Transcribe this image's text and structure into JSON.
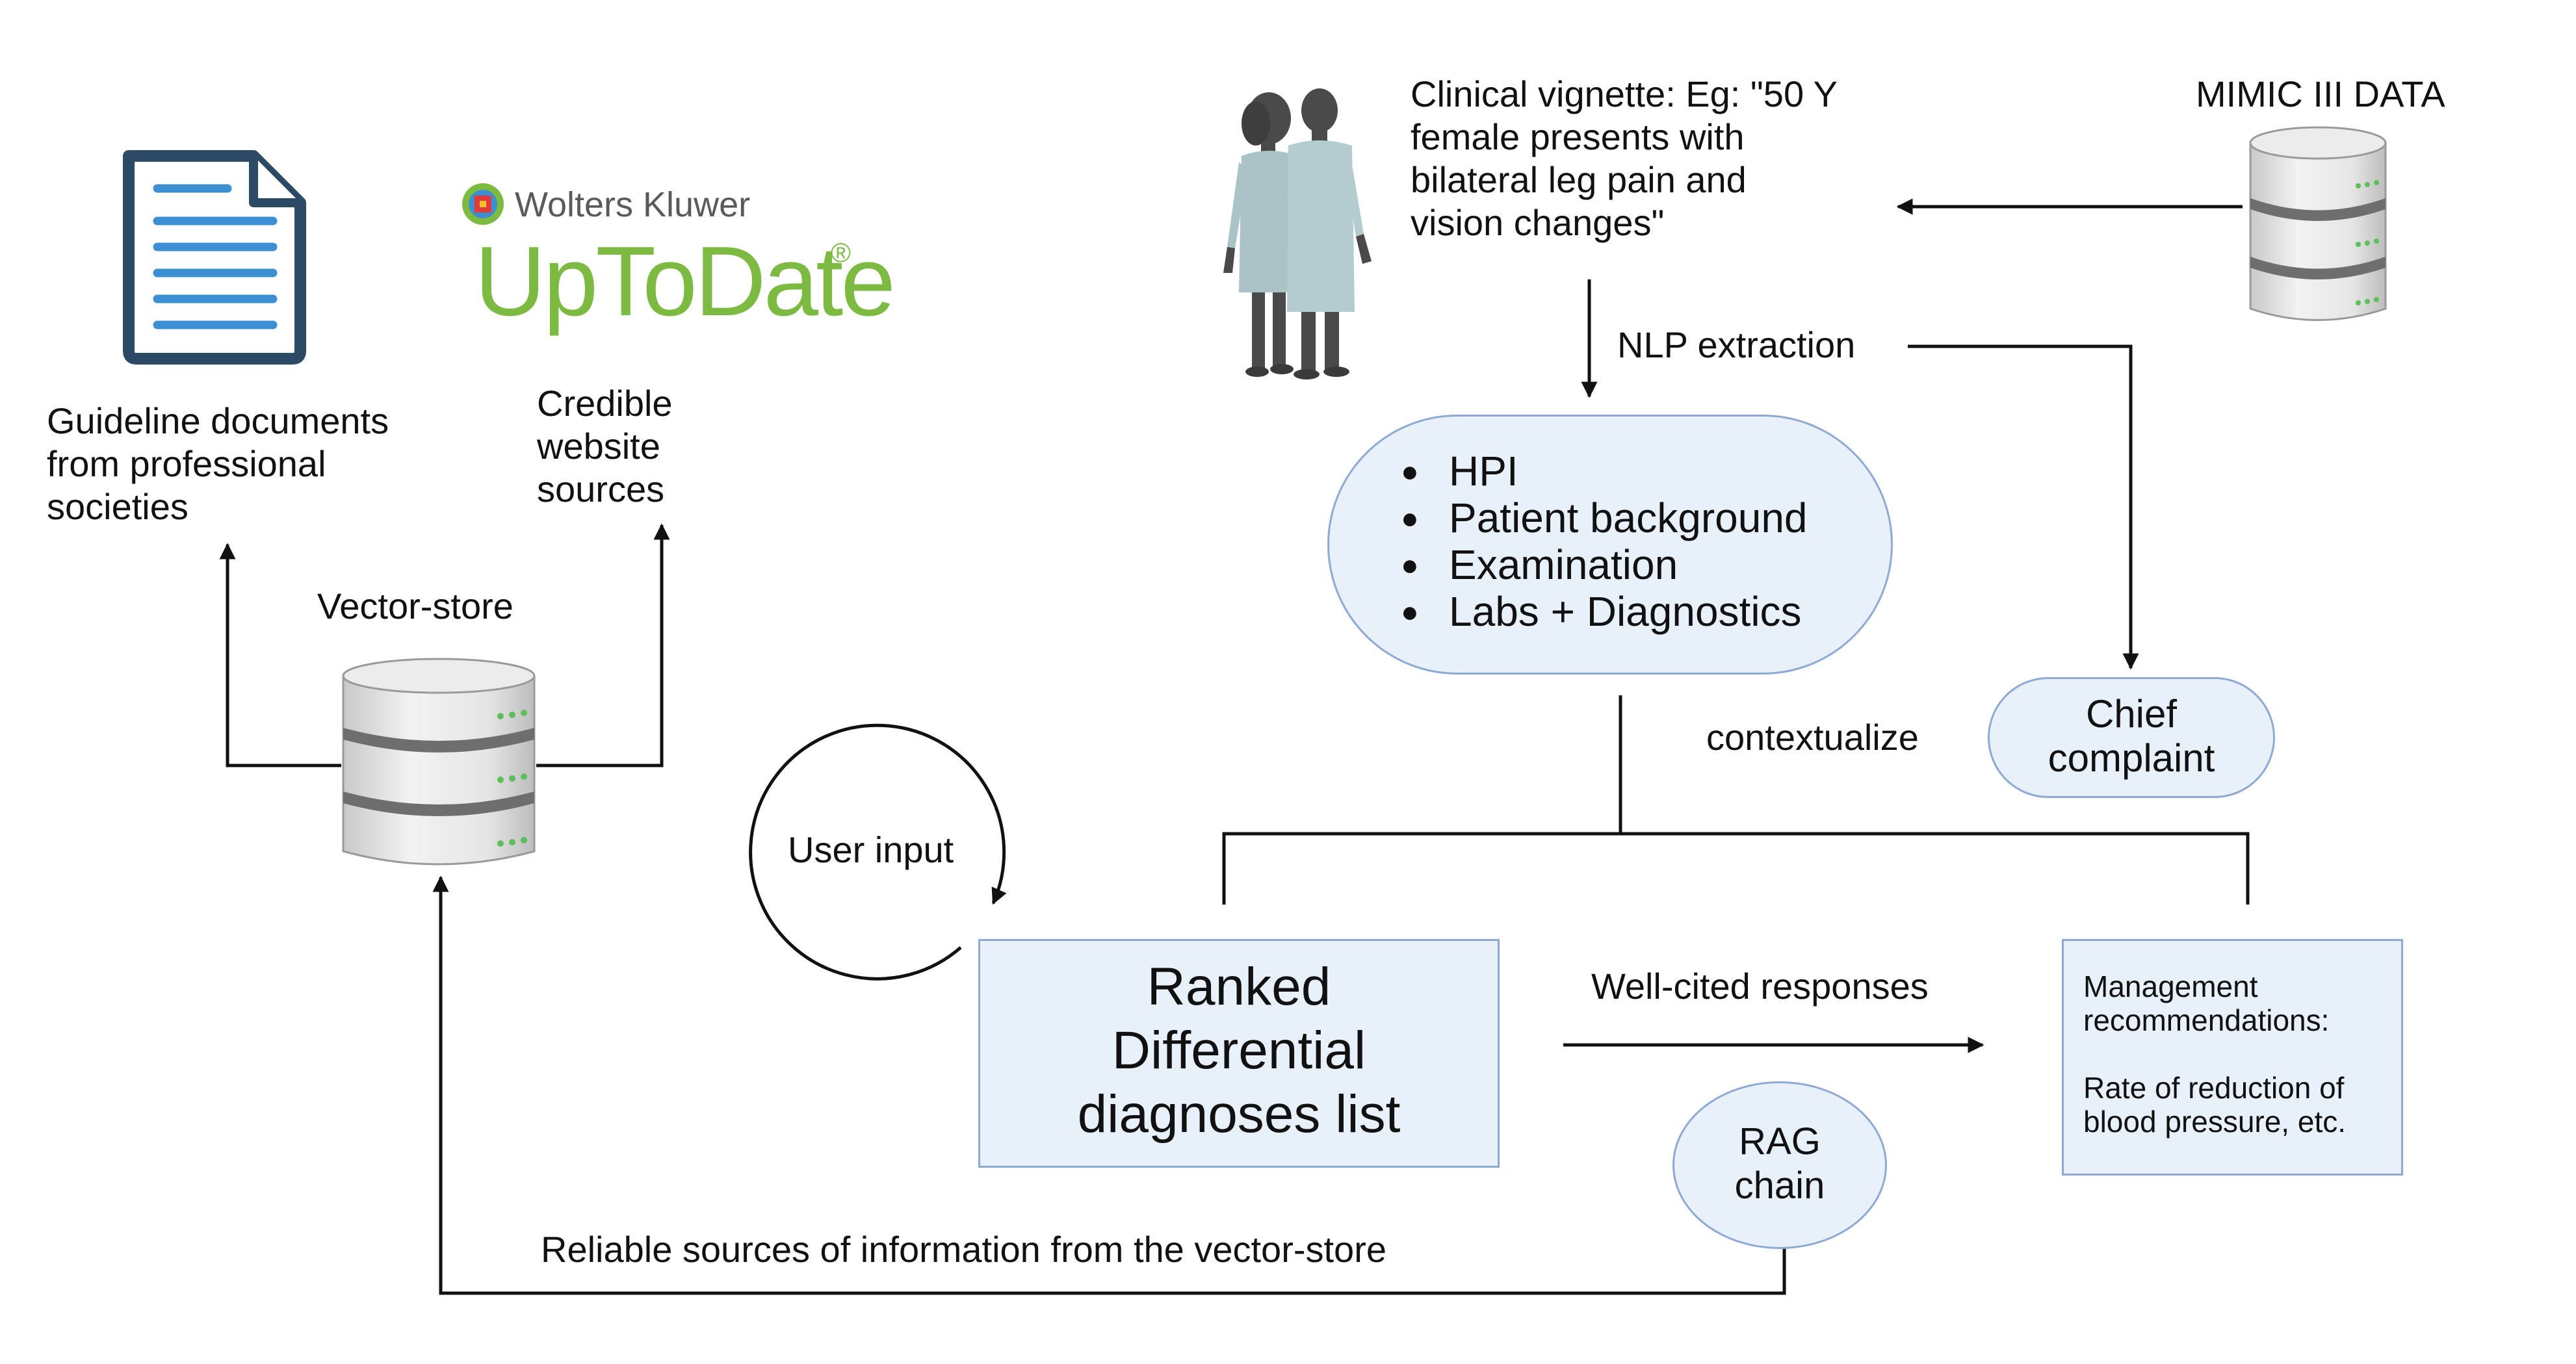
{
  "sources": {
    "guidelines_label": "Guideline documents\nfrom professional\nsocieties",
    "website_label": "Credible\nwebsite\nsources",
    "uptodate_publisher": "Wolters Kluwer",
    "uptodate_name": "UpToDate",
    "uptodate_mark": "®"
  },
  "vector_store": {
    "label": "Vector-store"
  },
  "vignette": {
    "text": "Clinical vignette: Eg: \"50 Y\nfemale presents with\nbilateral leg pain and\nvision changes\""
  },
  "mimic": {
    "label": "MIMIC III DATA"
  },
  "nlp_extraction": {
    "label": "NLP extraction"
  },
  "extracted_items": [
    "HPI",
    "Patient background",
    "Examination",
    "Labs + Diagnostics"
  ],
  "chief_complaint": {
    "label": "Chief\ncomplaint"
  },
  "contextualize": {
    "label": "contextualize"
  },
  "user_input": {
    "label": "User input"
  },
  "ranked_list": {
    "label": "Ranked\nDifferential\ndiagnoses list"
  },
  "well_cited": {
    "label": "Well-cited responses"
  },
  "management": {
    "label": "Management\nrecommendations:\n\nRate of reduction of\nblood pressure, etc."
  },
  "rag_chain": {
    "label": "RAG\nchain"
  },
  "reliable_sources": {
    "label": "Reliable sources of information from the vector-store"
  },
  "colors": {
    "box_fill": "#e8f0fa",
    "box_border": "#8eaad4",
    "document_blue": "#3d8fd1",
    "document_outline": "#2a4a66",
    "uptodate_green": "#7dba42",
    "line": "#111111"
  }
}
